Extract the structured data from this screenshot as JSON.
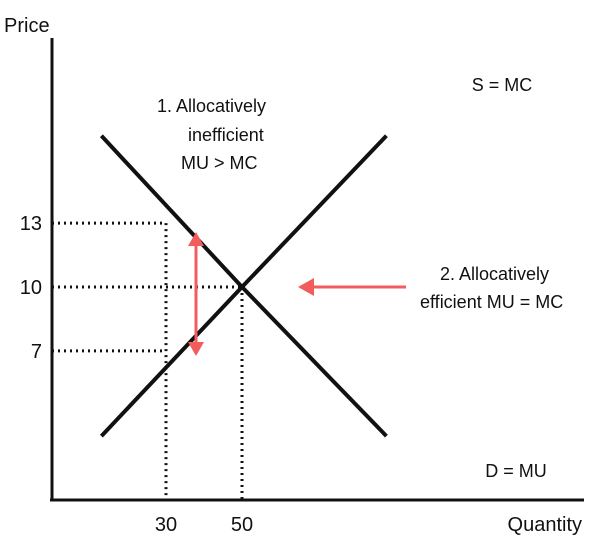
{
  "chart_data": {
    "type": "line",
    "ylabel": "Price",
    "xlabel": "Quantity",
    "y_ticks": [
      "13",
      "10",
      "7"
    ],
    "x_ticks": [
      "30",
      "50"
    ],
    "series": [
      {
        "name": "S = MC",
        "points": [
          [
            13,
            3
          ],
          [
            50,
            10
          ],
          [
            88,
            17.1
          ]
        ]
      },
      {
        "name": "D = MU",
        "points": [
          [
            13,
            17.1
          ],
          [
            50,
            10
          ],
          [
            88,
            3
          ]
        ]
      }
    ],
    "reference_points": [
      {
        "x": 30,
        "y": 13
      },
      {
        "x": 30,
        "y": 7
      },
      {
        "x": 50,
        "y": 10
      }
    ],
    "annotations": {
      "inefficient_line1": "1.  Allocatively",
      "inefficient_line2": "inefficient",
      "inefficient_line3": "MU > MC",
      "efficient_line1": "2. Allocatively",
      "efficient_line2": "efficient MU = MC"
    },
    "grid": false,
    "colors": {
      "curves": "#111111",
      "arrows": "#f25c5c",
      "axes": "#111111"
    }
  }
}
